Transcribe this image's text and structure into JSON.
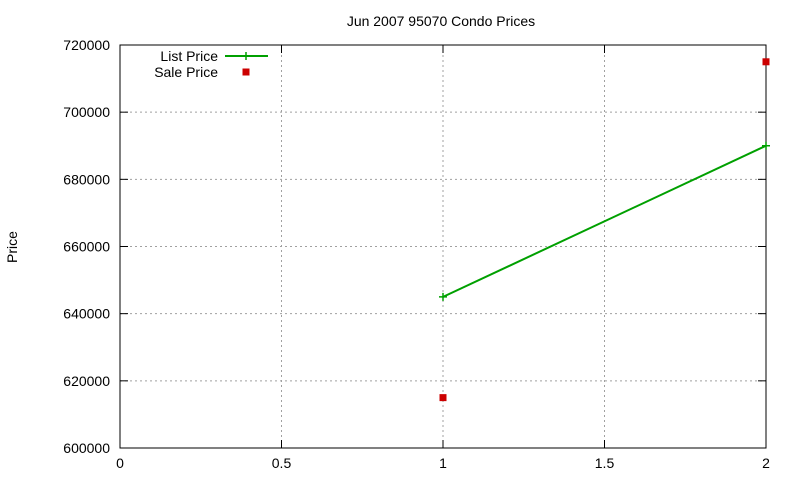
{
  "chart_data": {
    "type": "line",
    "title": "Jun 2007 95070 Condo Prices",
    "xlabel": "",
    "ylabel": "Price",
    "xlim": [
      0,
      2
    ],
    "ylim": [
      600000,
      720000
    ],
    "xticks": [
      0,
      0.5,
      1,
      1.5,
      2
    ],
    "xtick_labels": [
      "0",
      "0.5",
      "1",
      "1.5",
      "2"
    ],
    "yticks": [
      600000,
      620000,
      640000,
      660000,
      680000,
      700000,
      720000
    ],
    "ytick_labels": [
      "600000",
      "620000",
      "640000",
      "660000",
      "680000",
      "700000",
      "720000"
    ],
    "grid": true,
    "legend_position": "top-left",
    "series": [
      {
        "name": "List Price",
        "style": "line-with-plus-markers",
        "color": "#00a000",
        "x": [
          1,
          2
        ],
        "y": [
          645000,
          690000
        ]
      },
      {
        "name": "Sale Price",
        "style": "square-markers",
        "color": "#cc0000",
        "x": [
          1,
          2
        ],
        "y": [
          615000,
          715000
        ]
      }
    ]
  }
}
